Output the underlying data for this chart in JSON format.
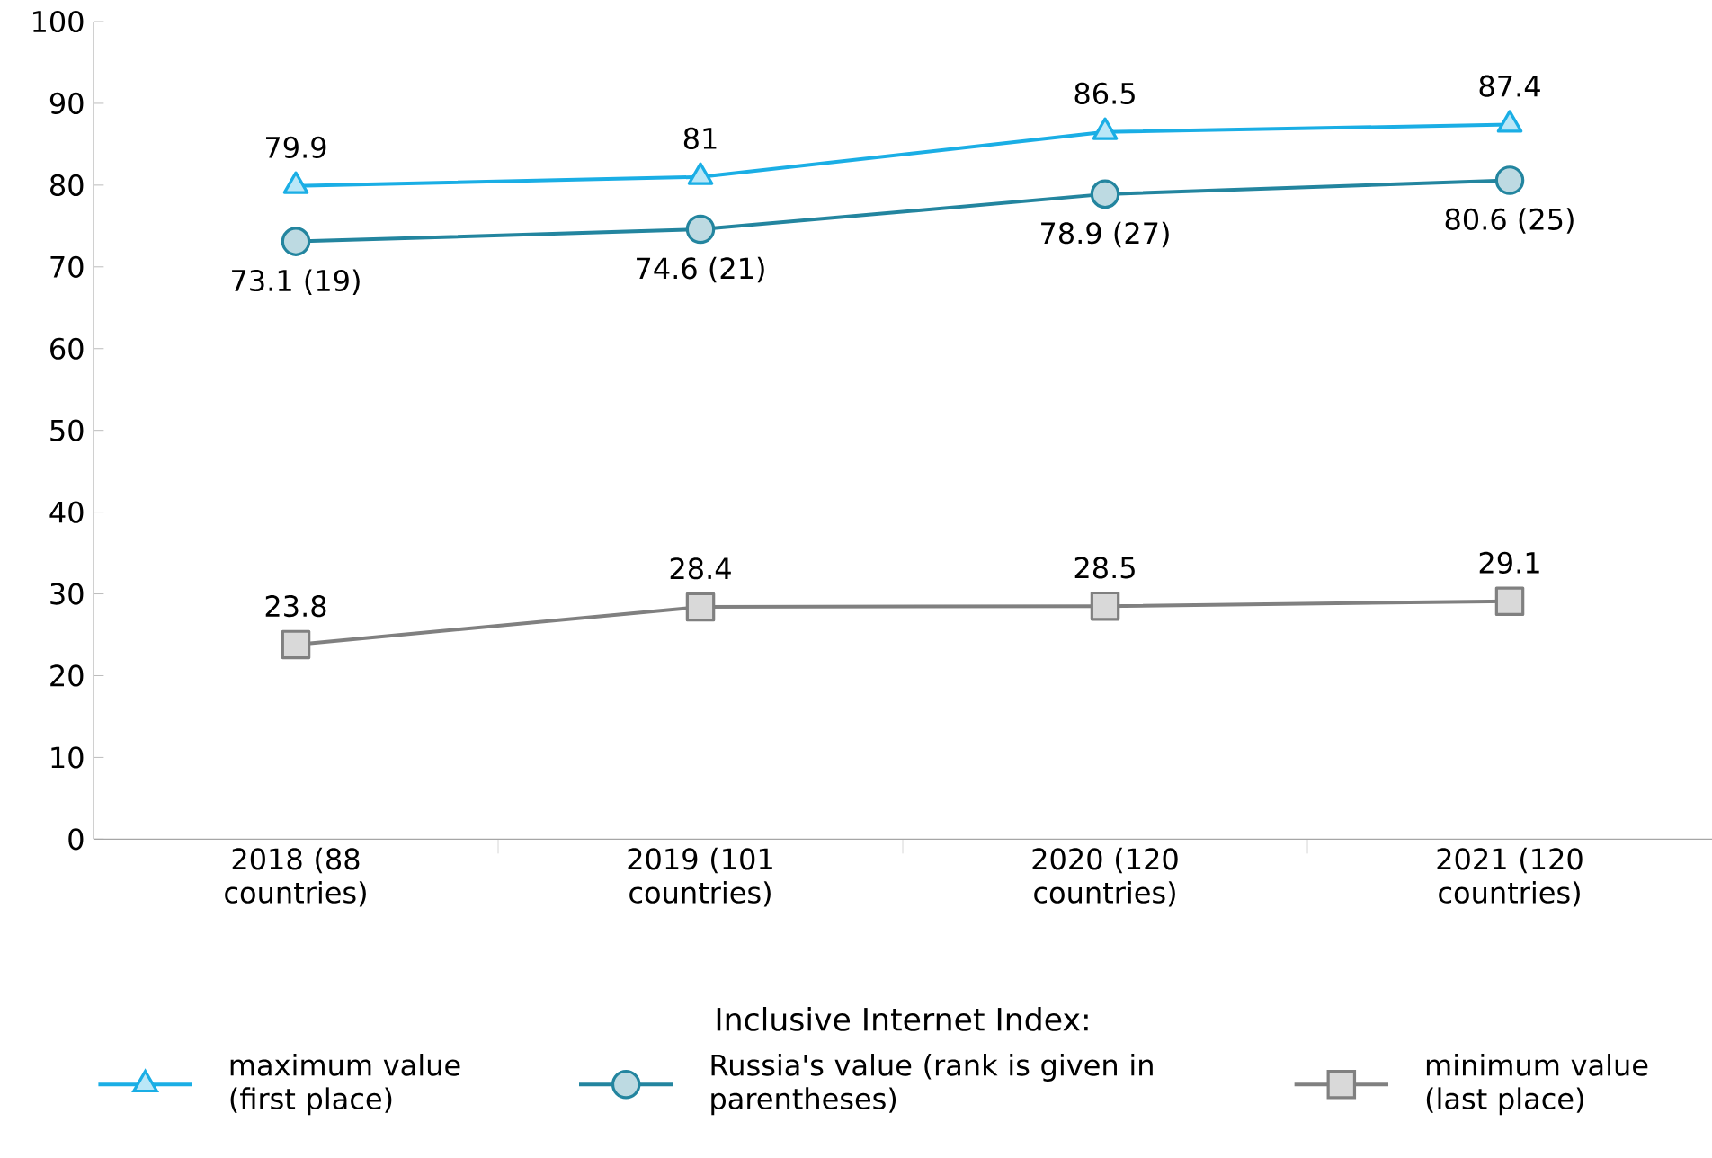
{
  "chart_data": {
    "type": "line",
    "categories": [
      "2018 (88 countries)",
      "2019 (101 countries)",
      "2020 (120 countries)",
      "2021 (120 countries)"
    ],
    "series": [
      {
        "name": "maximum value (first place)",
        "color": "#1aaee5",
        "marker": "triangle",
        "values": [
          79.9,
          81,
          86.5,
          87.4
        ],
        "value_labels": [
          "79.9",
          "81",
          "86.5",
          "87.4"
        ]
      },
      {
        "name": "Russia's value (rank is given in parentheses)",
        "color": "#23859f",
        "marker": "circle",
        "values": [
          73.1,
          74.6,
          78.9,
          80.6
        ],
        "value_labels": [
          "73.1 (19)",
          "74.6 (21)",
          "78.9 (27)",
          "80.6 (25)"
        ]
      },
      {
        "name": "minimum value (last place)",
        "color": "#808080",
        "marker": "square",
        "values": [
          23.8,
          28.4,
          28.5,
          29.1
        ],
        "value_labels": [
          "23.8",
          "28.4",
          "28.5",
          "29.1"
        ]
      }
    ],
    "ylim": [
      0,
      100
    ],
    "yticks": [
      0,
      10,
      20,
      30,
      40,
      50,
      60,
      70,
      80,
      90,
      100
    ],
    "legend_title": "Inclusive Internet Index:",
    "legend": "bottom",
    "grid": false,
    "line_style": "solid"
  }
}
